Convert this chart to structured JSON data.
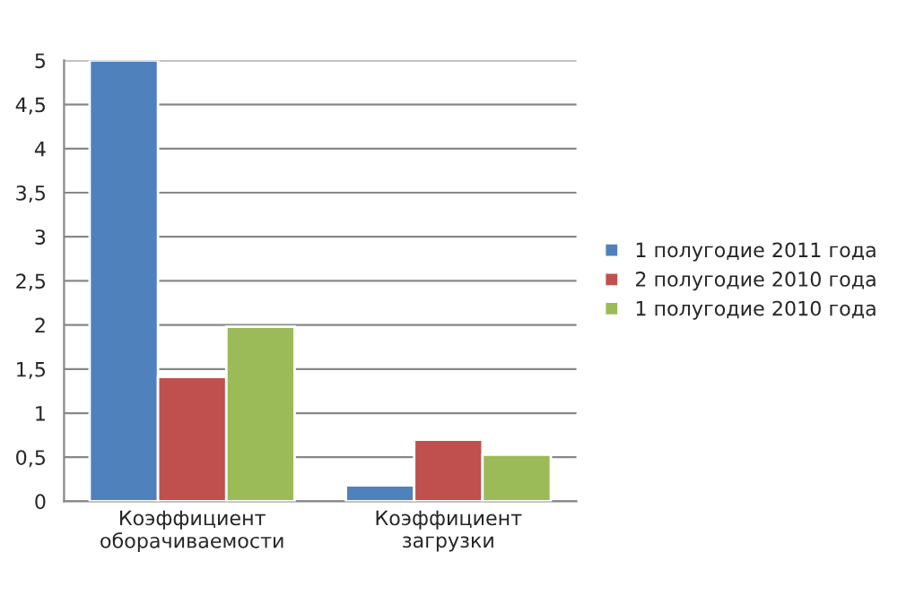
{
  "chart_data": {
    "type": "bar",
    "categories": [
      "Коэффициент\nоборачиваемости",
      "Коэффициент\nзагрузки"
    ],
    "series": [
      {
        "name": "1 полугодие 2011 года",
        "color": "#4f81bd",
        "values": [
          5.0,
          0.18
        ]
      },
      {
        "name": "2 полугодие 2010 года",
        "color": "#c0504d",
        "values": [
          1.41,
          0.7
        ]
      },
      {
        "name": "1 полугодие 2010 года",
        "color": "#9bbb59",
        "values": [
          1.98,
          0.53
        ]
      }
    ],
    "ylim": [
      0,
      5
    ],
    "yticks": [
      0,
      {
        "value": 0.5,
        "label": "0,5"
      },
      1,
      {
        "value": 1.5,
        "label": "1,5"
      },
      2,
      {
        "value": 2.5,
        "label": "2,5"
      },
      3,
      {
        "value": 3.5,
        "label": "3,5"
      },
      4,
      {
        "value": 4.5,
        "label": "4,5"
      },
      5
    ],
    "grid": "y",
    "legend": "right"
  }
}
